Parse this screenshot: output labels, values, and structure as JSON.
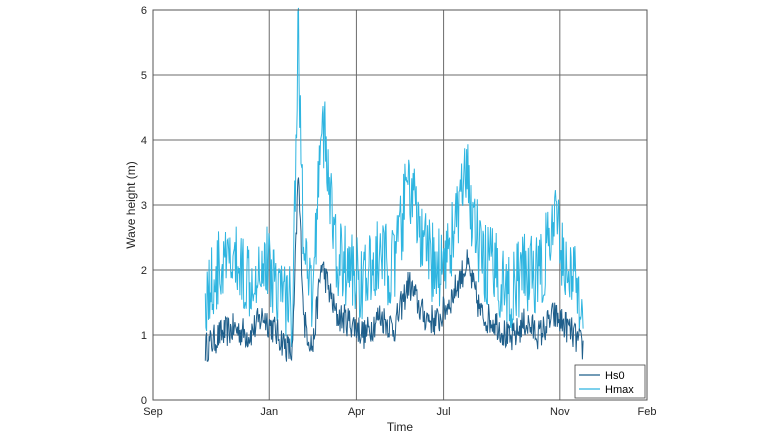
{
  "chart_data": {
    "type": "line",
    "title": "",
    "xlabel": "Time",
    "ylabel": "Wave height (m)",
    "ylim": [
      0,
      6
    ],
    "yticks": [
      "0",
      "1",
      "2",
      "3",
      "4",
      "5",
      "6"
    ],
    "xticks": [
      "Sep",
      "Jan",
      "Apr",
      "Jul",
      "Nov",
      "Feb"
    ],
    "grid": true,
    "legend_position": "lower right",
    "x_unit": "months since Sep (tick positions 0,4,7,10,14,17)",
    "x": [
      1.8,
      2.3,
      2.8,
      3.3,
      3.8,
      4.3,
      4.8,
      5.0,
      5.2,
      5.5,
      5.8,
      6.3,
      6.8,
      7.3,
      7.8,
      8.3,
      8.8,
      9.3,
      9.8,
      10.3,
      10.8,
      11.3,
      11.8,
      12.3,
      12.8,
      13.3,
      13.8,
      14.3,
      14.8
    ],
    "series": [
      {
        "name": "Hs0",
        "color": "#1f5f8b",
        "values": [
          0.8,
          1.0,
          1.1,
          1.0,
          1.3,
          1.0,
          0.7,
          3.5,
          1.2,
          0.8,
          2.1,
          1.3,
          1.2,
          1.0,
          1.3,
          1.1,
          1.8,
          1.3,
          1.2,
          1.6,
          2.1,
          1.3,
          1.2,
          0.9,
          1.2,
          1.0,
          1.3,
          1.1,
          0.8
        ]
      },
      {
        "name": "Hmax",
        "color": "#2fb5e0",
        "values": [
          1.6,
          2.0,
          2.1,
          1.9,
          2.2,
          1.8,
          1.4,
          5.7,
          2.0,
          1.5,
          4.5,
          2.2,
          2.0,
          1.8,
          2.2,
          2.0,
          3.4,
          2.3,
          2.0,
          2.5,
          3.4,
          2.1,
          2.0,
          1.6,
          2.0,
          1.9,
          2.7,
          2.0,
          1.5
        ]
      }
    ]
  },
  "legend": {
    "items": [
      {
        "label": "Hs0",
        "color": "#1f5f8b"
      },
      {
        "label": "Hmax",
        "color": "#2fb5e0"
      }
    ]
  },
  "axes": {
    "xlabel": "Time",
    "ylabel": "Wave height (m)"
  }
}
